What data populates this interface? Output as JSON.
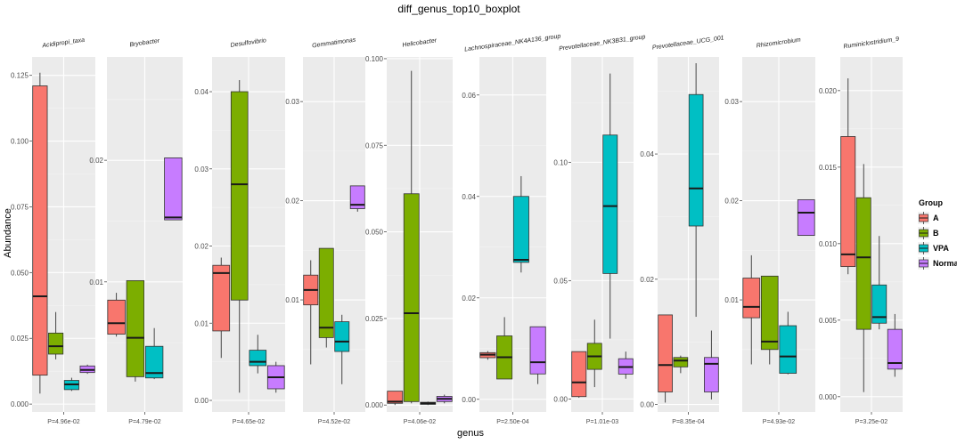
{
  "chart_data": {
    "type": "boxplot",
    "title": "diff_genus_top10_boxplot",
    "xlabel": "genus",
    "ylabel": "Abundance",
    "legend": {
      "title": "Group",
      "position": "right",
      "groups": [
        "A",
        "B",
        "VPA",
        "Normal"
      ],
      "colors": [
        "#F8766D",
        "#7CAE00",
        "#00BFC4",
        "#C77CFF"
      ]
    },
    "panels": [
      {
        "genus": "Acidipropionibacterium_taxa",
        "strip_label": "Acidipropi_taxa",
        "pvalue": "P=4.96e-02",
        "ylim": [
          -0.003,
          0.132
        ],
        "ticks": [
          0.0,
          0.025,
          0.05,
          0.075,
          0.1,
          0.125
        ],
        "tick_labels": [
          "0.000",
          "0.025",
          "0.050",
          "0.075",
          "0.100",
          "0.125"
        ],
        "boxes": [
          {
            "group": "A",
            "min": 0.004,
            "q1": 0.011,
            "median": 0.041,
            "q3": 0.121,
            "max": 0.126
          },
          {
            "group": "B",
            "min": 0.017,
            "q1": 0.019,
            "median": 0.022,
            "q3": 0.027,
            "max": 0.035
          },
          {
            "group": "VPA",
            "min": 0.005,
            "q1": 0.0055,
            "median": 0.0075,
            "q3": 0.009,
            "max": 0.01
          },
          {
            "group": "Normal",
            "min": 0.0115,
            "q1": 0.012,
            "median": 0.013,
            "q3": 0.0145,
            "max": 0.015
          }
        ]
      },
      {
        "genus": "Bryobacter",
        "strip_label": "Bryobacter",
        "pvalue": "P=4.79e-02",
        "ylim": [
          -0.0007,
          0.0285
        ],
        "ticks": [
          0.01,
          0.02
        ],
        "tick_labels": [
          "0.01",
          "0.02"
        ],
        "boxes": [
          {
            "group": "A",
            "min": 0.0055,
            "q1": 0.0057,
            "median": 0.0066,
            "q3": 0.0085,
            "max": 0.0091
          },
          {
            "group": "B",
            "min": 0.0018,
            "q1": 0.0022,
            "median": 0.0054,
            "q3": 0.0101,
            "max": 0.0101
          },
          {
            "group": "VPA",
            "min": 0.002,
            "q1": 0.0021,
            "median": 0.0025,
            "q3": 0.0047,
            "max": 0.0062
          },
          {
            "group": "Normal",
            "min": 0.0151,
            "q1": 0.0151,
            "median": 0.0153,
            "q3": 0.0202,
            "max": 0.0202
          }
        ]
      },
      {
        "genus": "Desulfovibrio",
        "strip_label": "Desulfovibrio",
        "pvalue": "P=4.65e-02",
        "ylim": [
          -0.0015,
          0.0445
        ],
        "ticks": [
          0.0,
          0.01,
          0.02,
          0.03,
          0.04
        ],
        "tick_labels": [
          "0.00",
          "0.01",
          "0.02",
          "0.03",
          "0.04"
        ],
        "boxes": [
          {
            "group": "A",
            "min": 0.0055,
            "q1": 0.009,
            "median": 0.0165,
            "q3": 0.0175,
            "max": 0.0185
          },
          {
            "group": "B",
            "min": 0.001,
            "q1": 0.013,
            "median": 0.028,
            "q3": 0.04,
            "max": 0.0415
          },
          {
            "group": "VPA",
            "min": 0.0035,
            "q1": 0.0045,
            "median": 0.005,
            "q3": 0.0065,
            "max": 0.0085
          },
          {
            "group": "Normal",
            "min": 0.001,
            "q1": 0.0015,
            "median": 0.003,
            "q3": 0.0045,
            "max": 0.005
          }
        ]
      },
      {
        "genus": "Gemmatimonas",
        "strip_label": "Gemmatimonas",
        "pvalue": "P=4.52e-02",
        "ylim": [
          -0.0013,
          0.0345
        ],
        "ticks": [
          0.01,
          0.02,
          0.03
        ],
        "tick_labels": [
          "0.01",
          "0.02",
          "0.03"
        ],
        "boxes": [
          {
            "group": "A",
            "min": 0.0035,
            "q1": 0.0095,
            "median": 0.011,
            "q3": 0.0125,
            "max": 0.014
          },
          {
            "group": "B",
            "min": 0.0052,
            "q1": 0.0062,
            "median": 0.0072,
            "q3": 0.0152,
            "max": 0.0152
          },
          {
            "group": "VPA",
            "min": 0.0015,
            "q1": 0.0048,
            "median": 0.0058,
            "q3": 0.0078,
            "max": 0.0085
          },
          {
            "group": "Normal",
            "min": 0.0189,
            "q1": 0.0192,
            "median": 0.0196,
            "q3": 0.0215,
            "max": 0.0215
          }
        ]
      },
      {
        "genus": "Helicobacter",
        "strip_label": "Helicobacter",
        "pvalue": "P=4.06e-02",
        "ylim": [
          -0.002,
          0.1005
        ],
        "ticks": [
          0.0,
          0.025,
          0.05,
          0.075,
          0.1
        ],
        "tick_labels": [
          "0.000",
          "0.025",
          "0.050",
          "0.075",
          "0.100"
        ],
        "boxes": [
          {
            "group": "A",
            "min": 0.0,
            "q1": 0.0005,
            "median": 0.001,
            "q3": 0.004,
            "max": 0.004
          },
          {
            "group": "B",
            "min": 0.0005,
            "q1": 0.001,
            "median": 0.0265,
            "q3": 0.061,
            "max": 0.0965
          },
          {
            "group": "VPA",
            "min": 0.0,
            "q1": 0.0002,
            "median": 0.0005,
            "q3": 0.0008,
            "max": 0.001
          },
          {
            "group": "Normal",
            "min": 0.0005,
            "q1": 0.001,
            "median": 0.0018,
            "q3": 0.0025,
            "max": 0.003
          }
        ]
      },
      {
        "genus": "Lachnospiraceae_NK4A136_group",
        "strip_label": "Lachnospiraceae_NK4A136_group",
        "pvalue": "P=2.50e-04",
        "ylim": [
          -0.0025,
          0.0675
        ],
        "ticks": [
          0.0,
          0.02,
          0.04,
          0.06
        ],
        "tick_labels": [
          "0.00",
          "0.02",
          "0.04",
          "0.06"
        ],
        "boxes": [
          {
            "group": "A",
            "min": 0.0078,
            "q1": 0.0082,
            "median": 0.0088,
            "q3": 0.0092,
            "max": 0.0095
          },
          {
            "group": "B",
            "min": 0.004,
            "q1": 0.004,
            "median": 0.0083,
            "q3": 0.0125,
            "max": 0.0162
          },
          {
            "group": "VPA",
            "min": 0.025,
            "q1": 0.027,
            "median": 0.0275,
            "q3": 0.04,
            "max": 0.044
          },
          {
            "group": "Normal",
            "min": 0.003,
            "q1": 0.005,
            "median": 0.0073,
            "q3": 0.0143,
            "max": 0.0143
          }
        ]
      },
      {
        "genus": "Prevotellaceae_NK3B31_group",
        "strip_label": "Prevotellaceae_NK3B31_group",
        "pvalue": "P=1.01e-03",
        "ylim": [
          -0.0055,
          0.1445
        ],
        "ticks": [
          0.0,
          0.05,
          0.1
        ],
        "tick_labels": [
          "0.00",
          "0.05",
          "0.10"
        ],
        "boxes": [
          {
            "group": "A",
            "min": 0.0005,
            "q1": 0.001,
            "median": 0.007,
            "q3": 0.02,
            "max": 0.02
          },
          {
            "group": "B",
            "min": 0.005,
            "q1": 0.0125,
            "median": 0.018,
            "q3": 0.0235,
            "max": 0.0335
          },
          {
            "group": "VPA",
            "min": 0.0255,
            "q1": 0.053,
            "median": 0.0815,
            "q3": 0.1115,
            "max": 0.1375
          },
          {
            "group": "Normal",
            "min": 0.0085,
            "q1": 0.0105,
            "median": 0.0135,
            "q3": 0.017,
            "max": 0.02
          }
        ]
      },
      {
        "genus": "Prevotellaceae_UCG_001",
        "strip_label": "Prevotellaceae_UCG_001",
        "pvalue": "P=8.35e-04",
        "ylim": [
          -0.0012,
          0.0555
        ],
        "ticks": [
          0.0,
          0.02,
          0.04
        ],
        "tick_labels": [
          "0.00",
          "0.02",
          "0.04"
        ],
        "boxes": [
          {
            "group": "A",
            "min": 0.0003,
            "q1": 0.002,
            "median": 0.0063,
            "q3": 0.0143,
            "max": 0.0143
          },
          {
            "group": "B",
            "min": 0.005,
            "q1": 0.006,
            "median": 0.007,
            "q3": 0.0075,
            "max": 0.0078
          },
          {
            "group": "VPA",
            "min": 0.014,
            "q1": 0.0285,
            "median": 0.0345,
            "q3": 0.0495,
            "max": 0.0545
          },
          {
            "group": "Normal",
            "min": 0.0008,
            "q1": 0.002,
            "median": 0.0065,
            "q3": 0.0075,
            "max": 0.0118
          }
        ]
      },
      {
        "genus": "Rhizomicrobium",
        "strip_label": "Rhizomicrobium",
        "pvalue": "P=4.93e-02",
        "ylim": [
          -0.0013,
          0.0345
        ],
        "ticks": [
          0.01,
          0.02,
          0.03
        ],
        "tick_labels": [
          "0.01",
          "0.02",
          "0.03"
        ],
        "boxes": [
          {
            "group": "A",
            "min": 0.0035,
            "q1": 0.0082,
            "median": 0.0093,
            "q3": 0.0122,
            "max": 0.0145
          },
          {
            "group": "B",
            "min": 0.0035,
            "q1": 0.005,
            "median": 0.0058,
            "q3": 0.0124,
            "max": 0.0124
          },
          {
            "group": "VPA",
            "min": 0.0025,
            "q1": 0.0026,
            "median": 0.0043,
            "q3": 0.0074,
            "max": 0.0088
          },
          {
            "group": "Normal",
            "min": 0.0165,
            "q1": 0.0165,
            "median": 0.0188,
            "q3": 0.0201,
            "max": 0.0201
          }
        ]
      },
      {
        "genus": "Ruminiclostridium_9",
        "strip_label": "Ruminiclostridium_9",
        "pvalue": "P=3.25e-02",
        "ylim": [
          -0.001,
          0.0222
        ],
        "ticks": [
          0.0,
          0.005,
          0.01,
          0.015,
          0.02
        ],
        "tick_labels": [
          "0.000",
          "0.005",
          "0.010",
          "0.015",
          "0.020"
        ],
        "boxes": [
          {
            "group": "A",
            "min": 0.008,
            "q1": 0.0085,
            "median": 0.0093,
            "q3": 0.017,
            "max": 0.0208
          },
          {
            "group": "B",
            "min": 0.0003,
            "q1": 0.0044,
            "median": 0.0091,
            "q3": 0.013,
            "max": 0.0152
          },
          {
            "group": "VPA",
            "min": 0.0044,
            "q1": 0.0048,
            "median": 0.0052,
            "q3": 0.0073,
            "max": 0.0105
          },
          {
            "group": "Normal",
            "min": 0.0013,
            "q1": 0.0018,
            "median": 0.0022,
            "q3": 0.0044,
            "max": 0.0054
          }
        ]
      }
    ]
  }
}
